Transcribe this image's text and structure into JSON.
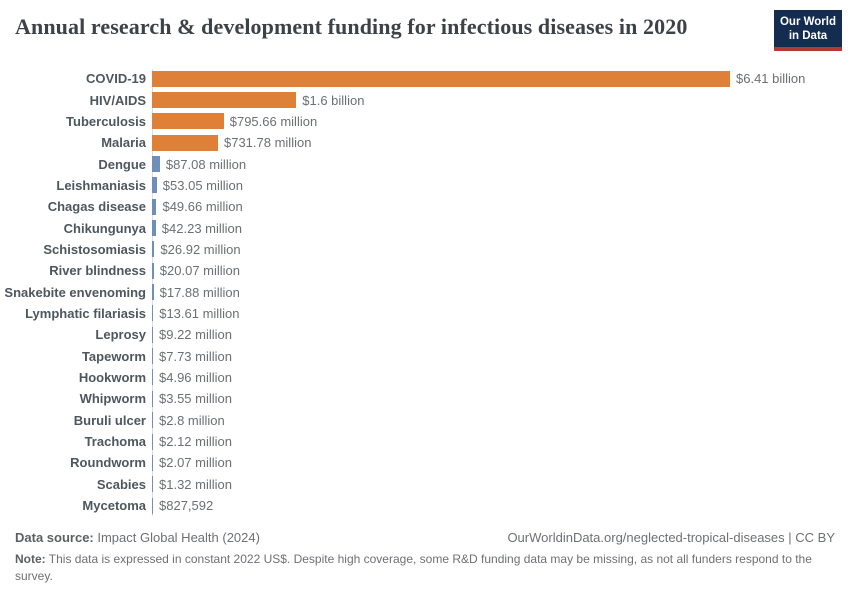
{
  "title": "Annual research & development funding for infectious diseases in 2020",
  "logo": {
    "line1": "Our World",
    "line2": "in Data"
  },
  "chart_data": {
    "type": "bar",
    "orientation": "horizontal",
    "title": "Annual research & development funding for infectious diseases in 2020",
    "unit": "constant 2022 US$",
    "xlim": [
      0,
      6410
    ],
    "xlim_unit": "million US$",
    "grid": false,
    "legend": "none",
    "bars": [
      {
        "category": "COVID-19",
        "value_million_usd": 6410,
        "label": "$6.41 billion",
        "color": "#de8037"
      },
      {
        "category": "HIV/AIDS",
        "value_million_usd": 1600,
        "label": "$1.6 billion",
        "color": "#de8037"
      },
      {
        "category": "Tuberculosis",
        "value_million_usd": 795.66,
        "label": "$795.66 million",
        "color": "#de8037"
      },
      {
        "category": "Malaria",
        "value_million_usd": 731.78,
        "label": "$731.78 million",
        "color": "#de8037"
      },
      {
        "category": "Dengue",
        "value_million_usd": 87.08,
        "label": "$87.08 million",
        "color": "#708eba"
      },
      {
        "category": "Leishmaniasis",
        "value_million_usd": 53.05,
        "label": "$53.05 million",
        "color": "#708eba"
      },
      {
        "category": "Chagas disease",
        "value_million_usd": 49.66,
        "label": "$49.66 million",
        "color": "#708eba"
      },
      {
        "category": "Chikungunya",
        "value_million_usd": 42.23,
        "label": "$42.23 million",
        "color": "#708eba"
      },
      {
        "category": "Schistosomiasis",
        "value_million_usd": 26.92,
        "label": "$26.92 million",
        "color": "#708eba"
      },
      {
        "category": "River blindness",
        "value_million_usd": 20.07,
        "label": "$20.07 million",
        "color": "#708eba"
      },
      {
        "category": "Snakebite envenoming",
        "value_million_usd": 17.88,
        "label": "$17.88 million",
        "color": "#708eba"
      },
      {
        "category": "Lymphatic filariasis",
        "value_million_usd": 13.61,
        "label": "$13.61 million",
        "color": "#708eba"
      },
      {
        "category": "Leprosy",
        "value_million_usd": 9.22,
        "label": "$9.22 million",
        "color": "#708eba"
      },
      {
        "category": "Tapeworm",
        "value_million_usd": 7.73,
        "label": "$7.73 million",
        "color": "#708eba"
      },
      {
        "category": "Hookworm",
        "value_million_usd": 4.96,
        "label": "$4.96 million",
        "color": "#708eba"
      },
      {
        "category": "Whipworm",
        "value_million_usd": 3.55,
        "label": "$3.55 million",
        "color": "#708eba"
      },
      {
        "category": "Buruli ulcer",
        "value_million_usd": 2.8,
        "label": "$2.8 million",
        "color": "#708eba"
      },
      {
        "category": "Trachoma",
        "value_million_usd": 2.12,
        "label": "$2.12 million",
        "color": "#708eba"
      },
      {
        "category": "Roundworm",
        "value_million_usd": 2.07,
        "label": "$2.07 million",
        "color": "#708eba"
      },
      {
        "category": "Scabies",
        "value_million_usd": 1.32,
        "label": "$1.32 million",
        "color": "#708eba"
      },
      {
        "category": "Mycetoma",
        "value_million_usd": 0.827592,
        "label": "$827,592",
        "color": "#708eba"
      }
    ]
  },
  "footer": {
    "datasource_label": "Data source:",
    "datasource_text": " Impact Global Health (2024)",
    "attribution": "OurWorldinData.org/neglected-tropical-diseases | CC BY",
    "note_label": "Note:",
    "note_text": " This data is expressed in constant 2022 US$. Despite high coverage, some R&D funding data may be missing, as not all funders respond to the survey."
  },
  "colors": {
    "bar_highlight": "#de8037",
    "bar_default": "#708eba",
    "axis_line": "#dcdce4",
    "logo_background": "#132c4f",
    "logo_stripe": "#b13a31",
    "title_text": "#3d4248"
  }
}
